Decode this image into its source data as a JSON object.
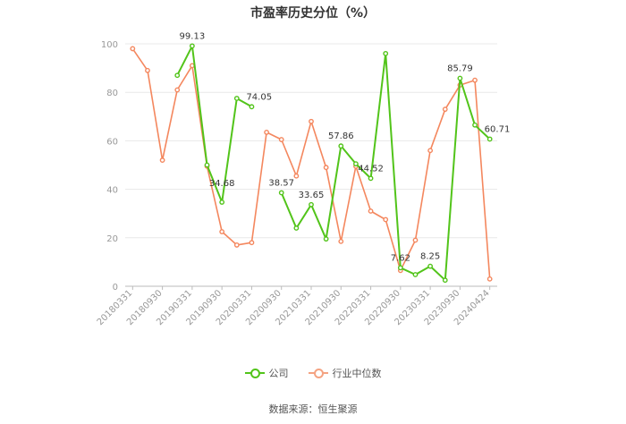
{
  "chart_data": {
    "type": "line",
    "title": "市盈率历史分位（%）",
    "ylim": [
      0,
      100
    ],
    "yticks": [
      "0",
      "20",
      "40",
      "60",
      "80",
      "100"
    ],
    "grid": true,
    "x_tick_labels": [
      "20180331",
      "20180930",
      "20190331",
      "20190930",
      "20200331",
      "20200930",
      "20210331",
      "20210930",
      "20220331",
      "20220930",
      "20230331",
      "20230930",
      "20240424"
    ],
    "series": [
      {
        "name": "公司",
        "color": "#52c41a",
        "values": [
          null,
          null,
          null,
          87,
          99.13,
          50,
          34.68,
          77.5,
          74.05,
          null,
          38.57,
          24,
          33.65,
          19.5,
          57.86,
          50.5,
          44.52,
          96,
          7.62,
          4.8,
          8.25,
          2.5,
          85.79,
          66.5,
          60.71
        ],
        "labels": [
          {
            "index": 4,
            "text": "99.13"
          },
          {
            "index": 6,
            "text": "34.68"
          },
          {
            "index": 8,
            "text": "74.05"
          },
          {
            "index": 10,
            "text": "38.57"
          },
          {
            "index": 12,
            "text": "33.65"
          },
          {
            "index": 14,
            "text": "57.86"
          },
          {
            "index": 16,
            "text": "44.52"
          },
          {
            "index": 18,
            "text": "7.62"
          },
          {
            "index": 20,
            "text": "8.25"
          },
          {
            "index": 22,
            "text": "85.79"
          },
          {
            "index": 24,
            "text": "60.71"
          }
        ]
      },
      {
        "name": "行业中位数",
        "color": "#f4875e",
        "values": [
          98,
          89,
          52,
          81,
          91,
          49.5,
          22.5,
          17,
          18,
          63.5,
          60.5,
          45.5,
          68,
          49,
          18.5,
          49.5,
          31,
          27.5,
          6.5,
          19,
          56,
          73,
          83,
          85,
          3
        ],
        "labels": []
      }
    ]
  },
  "legend": {
    "company": "公司",
    "industry": "行业中位数"
  },
  "source": "数据来源：恒生聚源"
}
